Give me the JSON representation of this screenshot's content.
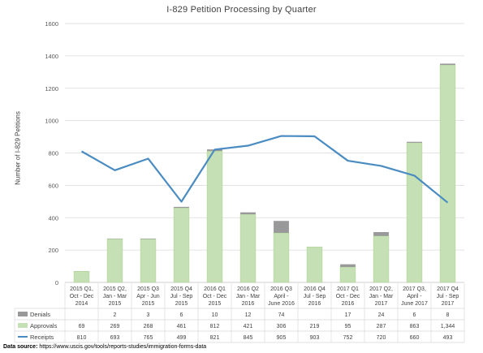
{
  "chart_data": {
    "type": "bar",
    "title": "I-829 Petition Processing by Quarter",
    "ylabel": "Number of I-829 Petitions",
    "ylim": [
      0,
      1600
    ],
    "yticks": [
      0,
      200,
      400,
      600,
      800,
      1000,
      1200,
      1400,
      1600
    ],
    "grid": true,
    "categories": [
      [
        "2015 Q1,",
        "Oct - Dec",
        "2014"
      ],
      [
        "2015 Q2,",
        "Jan - Mar",
        "2015"
      ],
      [
        "2015 Q3",
        "Apr - Jun",
        "2015"
      ],
      [
        "2015 Q4",
        "Jul - Sep",
        "2015"
      ],
      [
        "2016 Q1",
        "Oct - Dec",
        "2015"
      ],
      [
        "2016 Q2",
        "Jan - Mar",
        "2016"
      ],
      [
        "2016 Q3",
        "April -",
        "June 2016"
      ],
      [
        "2016 Q4",
        "Jul - Sep",
        "2016"
      ],
      [
        "2017 Q1",
        "Oct - Dec",
        "2016"
      ],
      [
        "2017 Q2,",
        "Jan - Mar",
        "2017"
      ],
      [
        "2017 Q3,",
        "April -",
        "June 2017"
      ],
      [
        "2017 Q4",
        "Jul - Sep",
        "2017"
      ]
    ],
    "series": [
      {
        "name": "Denials",
        "type": "bar-stacked",
        "color": "#999999",
        "values": [
          null,
          2,
          3,
          6,
          10,
          12,
          74,
          null,
          17,
          24,
          6,
          8
        ],
        "labels": [
          "",
          "2",
          "3",
          "6",
          "10",
          "12",
          "74",
          "",
          "17",
          "24",
          "6",
          "8"
        ]
      },
      {
        "name": "Approvals",
        "type": "bar-stacked",
        "color": "#c5e0b4",
        "values": [
          69,
          269,
          268,
          461,
          812,
          421,
          306,
          219,
          95,
          287,
          863,
          1344
        ],
        "labels": [
          "69",
          "269",
          "268",
          "461",
          "812",
          "421",
          "306",
          "219",
          "95",
          "287",
          "863",
          "1,344"
        ]
      },
      {
        "name": "Receipts",
        "type": "line",
        "color": "#4a8cc2",
        "values": [
          810,
          693,
          765,
          499,
          821,
          845,
          905,
          903,
          752,
          720,
          660,
          493
        ],
        "labels": [
          "810",
          "693",
          "765",
          "499",
          "821",
          "845",
          "905",
          "903",
          "752",
          "720",
          "660",
          "493"
        ]
      }
    ],
    "source": {
      "label": "Data source:",
      "url": "https://www.uscis.gov/tools/reports-studies/immigration-forms-data"
    }
  }
}
